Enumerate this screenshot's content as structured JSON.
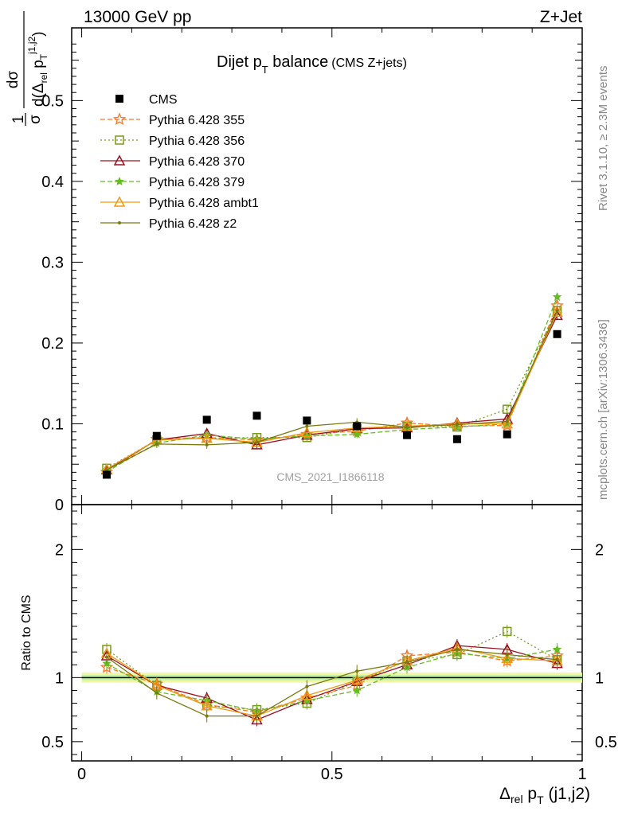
{
  "header": {
    "left": "13000 GeV pp",
    "right": "Z+Jet"
  },
  "side_labels": {
    "rivet": "Rivet 3.1.10, ≥ 2.3M events",
    "mcplots": "mcplots.cern.ch [arXiv:1306.3436]"
  },
  "chart_data": {
    "type": "scatter",
    "title_main": "Dijet p",
    "title_sub": "T",
    "title_tail": " balance",
    "title_note": "(CMS Z+jets)",
    "watermark": "CMS_2021_I1866118",
    "xlabel": {
      "delta": "Δ",
      "rel": "rel",
      "p": " p",
      "T": "T",
      "tail": " (j1,j2)"
    },
    "ylabel": {
      "one": "1",
      "sigma": "σ",
      "dsigma": "dσ",
      "d_open": "d(Δ",
      "rel": "rel",
      "p": " p",
      "T": "T",
      "sup": "j1,j2",
      "close": ")"
    },
    "ratio_ylabel": "Ratio to CMS",
    "xlim": [
      -0.02,
      1.0
    ],
    "ylim_main": [
      0,
      0.59
    ],
    "ylim_ratio": [
      0.35,
      2.35
    ],
    "xticks": [
      {
        "v": 0,
        "label": "0"
      },
      {
        "v": 0.5,
        "label": "0.5"
      },
      {
        "v": 1,
        "label": "1"
      }
    ],
    "yticks_main": [
      {
        "v": 0,
        "label": "0"
      },
      {
        "v": 0.1,
        "label": "0.1"
      },
      {
        "v": 0.2,
        "label": "0.2"
      },
      {
        "v": 0.3,
        "label": "0.3"
      },
      {
        "v": 0.4,
        "label": "0.4"
      },
      {
        "v": 0.5,
        "label": "0.5"
      }
    ],
    "yticks_ratio": [
      {
        "v": 0.5,
        "label": "0.5"
      },
      {
        "v": 1,
        "label": "1"
      },
      {
        "v": 2,
        "label": "2"
      }
    ],
    "x": [
      0.05,
      0.15,
      0.25,
      0.35,
      0.45,
      0.55,
      0.65,
      0.75,
      0.85,
      0.95
    ],
    "data": {
      "name": "CMS",
      "values": [
        0.037,
        0.085,
        0.105,
        0.11,
        0.104,
        0.097,
        0.086,
        0.081,
        0.087,
        0.211
      ]
    },
    "series": [
      {
        "name": "Pythia 6.428 355",
        "color": "#ff7722",
        "dash": "6,3",
        "marker": "star-open",
        "values": [
          0.04,
          0.081,
          0.083,
          0.08,
          0.087,
          0.091,
          0.101,
          0.097,
          0.098,
          0.246
        ]
      },
      {
        "name": "Pythia 6.428 356",
        "color": "#7a9a1a",
        "dash": "2,3",
        "marker": "square-open",
        "values": [
          0.045,
          0.08,
          0.082,
          0.083,
          0.083,
          0.094,
          0.097,
          0.096,
          0.118,
          0.24
        ]
      },
      {
        "name": "Pythia 6.428 370",
        "color": "#9a1020",
        "dash": "",
        "marker": "triangle-open",
        "values": [
          0.043,
          0.08,
          0.088,
          0.074,
          0.086,
          0.094,
          0.095,
          0.101,
          0.106,
          0.234
        ]
      },
      {
        "name": "Pythia 6.428 379",
        "color": "#66bb22",
        "dash": "6,3",
        "marker": "star-filled",
        "values": [
          0.041,
          0.076,
          0.086,
          0.081,
          0.085,
          0.087,
          0.093,
          0.096,
          0.1,
          0.257
        ]
      },
      {
        "name": "Pythia 6.428 ambt1",
        "color": "#ee9a11",
        "dash": "",
        "marker": "triangle-open",
        "values": [
          0.044,
          0.08,
          0.082,
          0.077,
          0.089,
          0.095,
          0.097,
          0.1,
          0.1,
          0.238
        ]
      },
      {
        "name": "Pythia 6.428 z2",
        "color": "#7a7a10",
        "dash": "",
        "marker": "dot",
        "values": [
          0.043,
          0.075,
          0.074,
          0.077,
          0.097,
          0.102,
          0.096,
          0.099,
          0.103,
          0.24
        ]
      }
    ],
    "ratios": [
      [
        1.08,
        0.95,
        0.79,
        0.73,
        0.84,
        0.94,
        1.17,
        1.2,
        1.13,
        1.17
      ],
      [
        1.22,
        0.94,
        0.78,
        0.75,
        0.8,
        0.97,
        1.13,
        1.18,
        1.36,
        1.14
      ],
      [
        1.17,
        0.94,
        0.84,
        0.67,
        0.83,
        0.97,
        1.1,
        1.25,
        1.22,
        1.11
      ],
      [
        1.11,
        0.89,
        0.82,
        0.74,
        0.82,
        0.9,
        1.08,
        1.19,
        1.15,
        1.22
      ],
      [
        1.19,
        0.94,
        0.78,
        0.7,
        0.86,
        0.98,
        1.13,
        1.23,
        1.15,
        1.13
      ],
      [
        1.16,
        0.88,
        0.7,
        0.7,
        0.93,
        1.05,
        1.12,
        1.22,
        1.18,
        1.14
      ]
    ]
  }
}
